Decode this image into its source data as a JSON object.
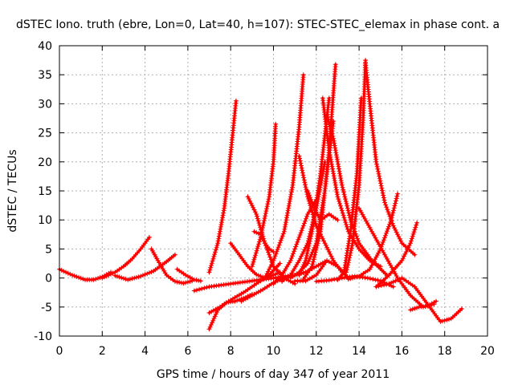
{
  "chart_data": {
    "type": "scatter",
    "title": "dSTEC Iono. truth (ebre, Lon=0, Lat=40, h=107): STEC-STEC_elemax in phase cont. a",
    "xlabel": "GPS time / hours of day 347 of year 2011",
    "ylabel": "dSTEC  / TECUs",
    "xlim": [
      0,
      20
    ],
    "ylim": [
      -10,
      40
    ],
    "xticks": [
      0,
      2,
      4,
      6,
      8,
      10,
      12,
      14,
      16,
      18,
      20
    ],
    "yticks": [
      -10,
      -5,
      0,
      5,
      10,
      15,
      20,
      25,
      30,
      35,
      40
    ],
    "grid": true,
    "marker": "+",
    "color": "#ff0000",
    "series": [
      {
        "x": [
          0.0,
          0.6,
          1.2,
          1.6,
          2.0,
          2.4
        ],
        "y": [
          1.5,
          0.5,
          -0.3,
          -0.3,
          0.2,
          1.0
        ]
      },
      {
        "x": [
          2.0,
          2.6,
          3.0,
          3.4,
          3.8,
          4.2
        ],
        "y": [
          0.0,
          1.0,
          2.0,
          3.3,
          5.0,
          7.0
        ]
      },
      {
        "x": [
          2.6,
          3.2,
          3.8,
          4.4,
          5.0,
          5.4
        ],
        "y": [
          0.4,
          -0.3,
          0.3,
          1.2,
          2.8,
          4.0
        ]
      },
      {
        "x": [
          4.3,
          4.6,
          5.0,
          5.4,
          5.8,
          6.2
        ],
        "y": [
          5.0,
          3.0,
          0.5,
          -0.6,
          -0.9,
          -0.5
        ]
      },
      {
        "x": [
          5.5,
          5.9,
          6.3,
          6.6
        ],
        "y": [
          1.5,
          0.5,
          -0.3,
          -0.5
        ]
      },
      {
        "x": [
          6.3,
          7.0,
          8.0,
          9.0,
          10.0,
          11.0,
          11.5
        ],
        "y": [
          -2.2,
          -1.5,
          -1.0,
          -0.5,
          0.0,
          0.5,
          1.0
        ]
      },
      {
        "x": [
          7.0,
          7.4,
          7.7,
          7.9,
          8.1,
          8.25
        ],
        "y": [
          1.0,
          6.0,
          12.0,
          18.0,
          25.0,
          30.5
        ]
      },
      {
        "x": [
          7.0,
          7.5,
          8.0,
          8.6,
          9.2,
          9.8,
          10.3
        ],
        "y": [
          -6.0,
          -5.0,
          -3.8,
          -2.5,
          -1.0,
          0.5,
          2.5
        ]
      },
      {
        "x": [
          7.0,
          7.4,
          7.8,
          8.2,
          8.6,
          9.0
        ],
        "y": [
          -8.8,
          -5.5,
          -4.2,
          -4.0,
          -3.5,
          -2.8
        ]
      },
      {
        "x": [
          8.0,
          8.4,
          8.8,
          9.2,
          9.6,
          10.0,
          10.3
        ],
        "y": [
          6.0,
          4.0,
          2.0,
          0.6,
          0.0,
          0.5,
          1.0
        ]
      },
      {
        "x": [
          8.8,
          9.2,
          9.6,
          10.0,
          10.5,
          11.0
        ],
        "y": [
          14.0,
          11.0,
          6.0,
          2.0,
          0.0,
          -1.0
        ]
      },
      {
        "x": [
          8.5,
          9.0,
          9.5,
          10.0,
          10.5,
          11.0,
          11.5,
          12.0,
          12.5
        ],
        "y": [
          -4.0,
          -3.0,
          -2.0,
          -0.8,
          0.0,
          0.5,
          1.0,
          2.0,
          3.0
        ]
      },
      {
        "x": [
          9.1,
          9.4,
          9.6,
          9.8,
          10.0
        ],
        "y": [
          8.0,
          7.5,
          6.0,
          5.0,
          4.5
        ]
      },
      {
        "x": [
          9.0,
          9.4,
          9.8,
          10.0,
          10.1
        ],
        "y": [
          2.0,
          7.0,
          14.0,
          20.0,
          26.5
        ]
      },
      {
        "x": [
          9.6,
          10.0,
          10.5,
          10.9,
          11.2,
          11.4
        ],
        "y": [
          0.0,
          3.0,
          8.0,
          16.0,
          26.0,
          35.0
        ]
      },
      {
        "x": [
          10.0,
          10.4,
          10.8,
          11.2,
          11.6,
          12.0
        ],
        "y": [
          -1.0,
          0.5,
          3.0,
          7.0,
          11.0,
          13.5
        ]
      },
      {
        "x": [
          10.4,
          10.8,
          11.2,
          11.6,
          12.0,
          12.4
        ],
        "y": [
          -0.6,
          0.5,
          3.0,
          6.0,
          12.0,
          20.0
        ]
      },
      {
        "x": [
          10.8,
          11.2,
          11.6,
          12.0,
          12.4,
          12.8
        ],
        "y": [
          0.0,
          1.0,
          2.5,
          6.0,
          15.0,
          27.0
        ]
      },
      {
        "x": [
          11.2,
          11.5,
          11.8,
          12.2,
          12.6
        ],
        "y": [
          0.5,
          3.0,
          8.0,
          18.0,
          31.0
        ]
      },
      {
        "x": [
          11.4,
          11.8,
          12.2,
          12.6,
          12.9
        ],
        "y": [
          -0.2,
          2.0,
          8.0,
          22.0,
          36.8
        ]
      },
      {
        "x": [
          11.0,
          11.5,
          12.0,
          12.5,
          13.0,
          13.5
        ],
        "y": [
          -0.5,
          -0.5,
          0.5,
          3.0,
          2.0,
          0.0
        ]
      },
      {
        "x": [
          11.2,
          11.6,
          12.0,
          12.4,
          12.8,
          13.2
        ],
        "y": [
          21.0,
          14.0,
          9.0,
          6.0,
          3.0,
          1.0
        ]
      },
      {
        "x": [
          11.6,
          11.9,
          12.2,
          12.6,
          13.0
        ],
        "y": [
          15.0,
          12.0,
          10.0,
          11.0,
          10.0
        ]
      },
      {
        "x": [
          12.3,
          12.6,
          13.0,
          13.5,
          14.0,
          14.5,
          15.0
        ],
        "y": [
          31.0,
          22.0,
          14.0,
          8.0,
          5.0,
          3.0,
          2.0
        ]
      },
      {
        "x": [
          12.5,
          12.8,
          13.2,
          13.6,
          14.0,
          14.6,
          15.3
        ],
        "y": [
          28.0,
          24.0,
          16.0,
          10.0,
          6.0,
          3.0,
          0.5
        ]
      },
      {
        "x": [
          12.0,
          12.6,
          13.2,
          13.8,
          14.4,
          15.0,
          15.6
        ],
        "y": [
          -0.6,
          -0.4,
          0.0,
          0.3,
          0.0,
          -0.5,
          -1.5
        ]
      },
      {
        "x": [
          13.0,
          13.3,
          13.6,
          13.9,
          14.1
        ],
        "y": [
          -0.3,
          1.0,
          8.0,
          18.0,
          31.0
        ]
      },
      {
        "x": [
          13.4,
          13.7,
          14.0,
          14.2,
          14.3
        ],
        "y": [
          1.0,
          6.0,
          16.0,
          28.0,
          37.5
        ]
      },
      {
        "x": [
          14.3,
          14.5,
          14.8,
          15.2,
          15.6,
          16.0,
          16.6
        ],
        "y": [
          37.0,
          30.0,
          20.0,
          13.0,
          9.0,
          6.0,
          4.0
        ]
      },
      {
        "x": [
          13.5,
          14.0,
          14.5,
          15.0,
          15.5,
          15.8
        ],
        "y": [
          -0.2,
          0.3,
          1.5,
          5.0,
          10.0,
          14.5
        ]
      },
      {
        "x": [
          14.8,
          15.4,
          16.0,
          16.6,
          17.2,
          17.8,
          18.3,
          18.8
        ],
        "y": [
          -1.5,
          -1.0,
          0.0,
          -1.5,
          -4.5,
          -7.5,
          -7.0,
          -5.3
        ]
      },
      {
        "x": [
          14.8,
          15.4,
          16.0,
          16.4,
          16.7
        ],
        "y": [
          -1.5,
          0.5,
          3.0,
          6.0,
          9.5
        ]
      },
      {
        "x": [
          16.4,
          16.8,
          17.2,
          17.6
        ],
        "y": [
          -5.5,
          -5.0,
          -4.8,
          -4.0
        ]
      },
      {
        "x": [
          14.0,
          14.6,
          15.2,
          15.8,
          16.4,
          17.0,
          17.5
        ],
        "y": [
          12.0,
          8.0,
          4.0,
          0.0,
          -3.0,
          -5.0,
          -4.5
        ]
      }
    ]
  }
}
